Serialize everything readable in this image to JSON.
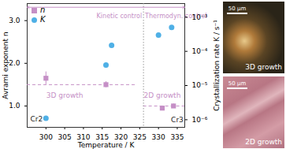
{
  "chart_data": {
    "type": "scatter",
    "x_label": "Temperature / K",
    "y_label": "Avrami exponent n",
    "y2_label": "Crystallization rate K / s⁻¹",
    "xlim": [
      295,
      337
    ],
    "xticks": [
      300,
      305,
      310,
      315,
      320,
      325,
      330,
      335
    ],
    "ylim": [
      0.5,
      3.4
    ],
    "yticks": [
      1,
      2,
      3
    ],
    "y2lim": [
      6e-07,
      0.0025
    ],
    "y2ticks": [
      {
        "value": 1e-06,
        "label": "10⁻⁶"
      },
      {
        "value": 1e-05,
        "label": "10⁻⁵"
      },
      {
        "value": 0.0001,
        "label": "10⁻⁴"
      },
      {
        "value": 0.001,
        "label": "10⁻³"
      }
    ],
    "log": "y2",
    "legend": "top-left",
    "series": [
      {
        "name": "n",
        "color": "#c58fc6",
        "marker": "square",
        "x": [
          300,
          316,
          331,
          334
        ],
        "values": [
          1.65,
          1.5,
          0.95,
          1.0
        ],
        "errors": [
          0.15,
          0.07,
          0.05,
          0.05
        ]
      },
      {
        "name": "K",
        "color": "#4fb0e6",
        "marker": "circle",
        "axis": "y2",
        "x": [
          300,
          316,
          317.5,
          330,
          333.5
        ],
        "values": [
          1.1e-06,
          4e-05,
          0.00015,
          0.0003,
          0.0005
        ]
      }
    ],
    "reference_lines": [
      {
        "y": 1.5,
        "x": [
          295,
          324
        ],
        "color": "#c58fc6",
        "line_style": "dashed"
      },
      {
        "y": 1.0,
        "x": [
          326,
          337
        ],
        "color": "#c58fc6",
        "line_style": "dashed"
      },
      {
        "x": 326,
        "color": "#999999",
        "line_style": "dotted"
      }
    ],
    "regions": [
      {
        "text": "Kinetic control",
        "x": [
          295,
          326
        ],
        "color": "#c58fc6"
      },
      {
        "text": "Thermodyn. control",
        "x": [
          326,
          337
        ],
        "color": "#c58fc6"
      }
    ],
    "annotations": [
      {
        "text": "3D growth",
        "x": 305,
        "y": 1.25,
        "color": "#c58fc6"
      },
      {
        "text": "2D growth",
        "x": 331,
        "y": 1.25,
        "color": "#c58fc6"
      },
      {
        "text": "Cr2",
        "x": 297.5,
        "y": 0.7,
        "color": "#222222"
      },
      {
        "text": "Cr3",
        "x": 335,
        "y": 0.68,
        "color": "#222222"
      }
    ]
  },
  "insets": [
    {
      "label": "3D growth",
      "scale_bar": "50 μm"
    },
    {
      "label": "2D growth",
      "scale_bar": "50 μm"
    }
  ]
}
